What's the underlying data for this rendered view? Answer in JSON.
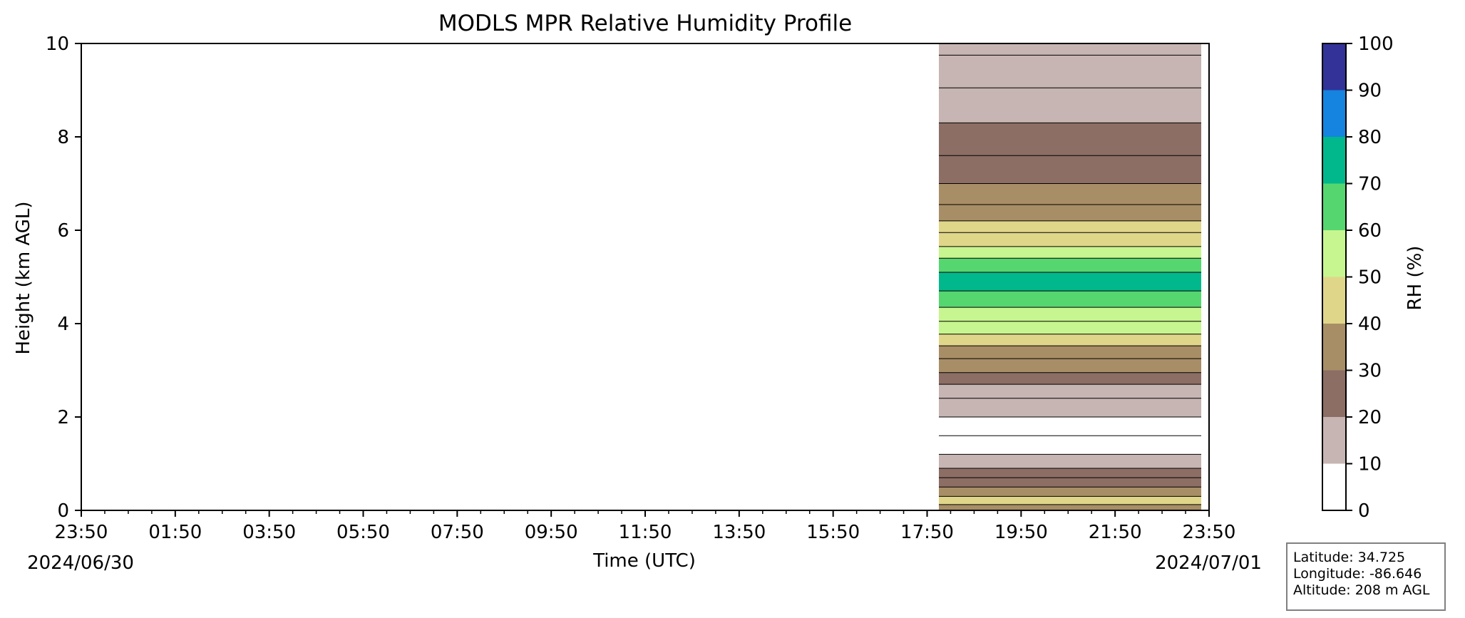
{
  "chart_data": {
    "type": "heatmap",
    "title": "MODLS MPR Relative Humidity Profile",
    "xlabel": "Time (UTC)",
    "ylabel": "Height (km AGL)",
    "x_start_date": "2024/06/30",
    "x_end_date": "2024/07/01",
    "x_ticks": [
      "23:50",
      "01:50",
      "03:50",
      "05:50",
      "07:50",
      "09:50",
      "11:50",
      "13:50",
      "15:50",
      "17:50",
      "19:50",
      "21:50",
      "23:50"
    ],
    "xlim": [
      "2024-06-30 23:50",
      "2024-07-01 23:50"
    ],
    "ylim": [
      0,
      10
    ],
    "y_ticks": [
      0,
      2,
      4,
      6,
      8,
      10
    ],
    "data_start_time": "2024-07-01 18:05",
    "data_end_time": "2024-07-01 23:40",
    "colorbar": {
      "label": "RH (%)",
      "levels": [
        0,
        10,
        20,
        30,
        40,
        50,
        60,
        70,
        80,
        90,
        100
      ],
      "colors": [
        "#ffffff",
        "#c6b5b2",
        "#8c6e65",
        "#a88e66",
        "#e0d68a",
        "#c7f58f",
        "#55d66f",
        "#00b88c",
        "#1484e0",
        "#323299"
      ]
    },
    "mean_profile": [
      {
        "height_km": 0.05,
        "rh_pct": 35
      },
      {
        "height_km": 0.2,
        "rh_pct": 45
      },
      {
        "height_km": 0.4,
        "rh_pct": 35
      },
      {
        "height_km": 0.6,
        "rh_pct": 25
      },
      {
        "height_km": 0.8,
        "rh_pct": 20
      },
      {
        "height_km": 1.0,
        "rh_pct": 10
      },
      {
        "height_km": 1.4,
        "rh_pct": 5
      },
      {
        "height_km": 1.8,
        "rh_pct": 5
      },
      {
        "height_km": 2.2,
        "rh_pct": 15
      },
      {
        "height_km": 2.6,
        "rh_pct": 15
      },
      {
        "height_km": 2.8,
        "rh_pct": 25
      },
      {
        "height_km": 3.1,
        "rh_pct": 35
      },
      {
        "height_km": 3.4,
        "rh_pct": 35
      },
      {
        "height_km": 3.65,
        "rh_pct": 45
      },
      {
        "height_km": 3.9,
        "rh_pct": 55
      },
      {
        "height_km": 4.2,
        "rh_pct": 55
      },
      {
        "height_km": 4.5,
        "rh_pct": 65
      },
      {
        "height_km": 4.9,
        "rh_pct": 70
      },
      {
        "height_km": 5.3,
        "rh_pct": 65
      },
      {
        "height_km": 5.5,
        "rh_pct": 55
      },
      {
        "height_km": 5.8,
        "rh_pct": 45
      },
      {
        "height_km": 6.1,
        "rh_pct": 45
      },
      {
        "height_km": 6.3,
        "rh_pct": 35
      },
      {
        "height_km": 6.8,
        "rh_pct": 35
      },
      {
        "height_km": 7.2,
        "rh_pct": 25
      },
      {
        "height_km": 8.0,
        "rh_pct": 25
      },
      {
        "height_km": 8.6,
        "rh_pct": 15
      },
      {
        "height_km": 9.5,
        "rh_pct": 15
      },
      {
        "height_km": 10.0,
        "rh_pct": 15
      }
    ]
  },
  "station": {
    "latitude": "Latitude: 34.725",
    "longitude": "Longitude: -86.646",
    "altitude": "Altitude: 208 m AGL"
  }
}
